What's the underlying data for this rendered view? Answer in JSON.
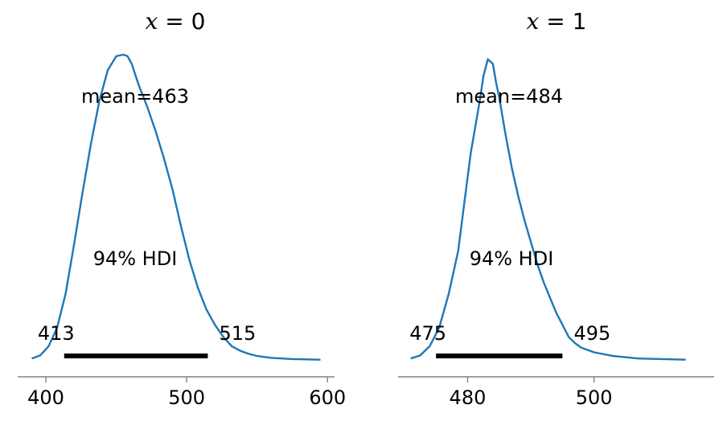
{
  "chart_data": [
    {
      "type": "line",
      "title": "x = 0",
      "title_math": {
        "var": "x",
        "value": "0"
      },
      "xlim": [
        380,
        605
      ],
      "xticks": [
        400,
        500,
        600
      ],
      "tick_labels": [
        "400",
        "500",
        "600"
      ],
      "ylim": [
        0,
        1
      ],
      "density": {
        "x": [
          390,
          396,
          402,
          408,
          414,
          420,
          426,
          432,
          438,
          444,
          450,
          455,
          458,
          461,
          466,
          472,
          478,
          484,
          490,
          496,
          502,
          508,
          514,
          520,
          526,
          532,
          538,
          544,
          550,
          560,
          575,
          595
        ],
        "y": [
          0.01,
          0.02,
          0.05,
          0.11,
          0.22,
          0.38,
          0.55,
          0.71,
          0.85,
          0.95,
          0.995,
          1.0,
          0.995,
          0.97,
          0.9,
          0.83,
          0.75,
          0.66,
          0.56,
          0.44,
          0.33,
          0.24,
          0.17,
          0.12,
          0.08,
          0.05,
          0.035,
          0.025,
          0.018,
          0.012,
          0.008,
          0.006
        ]
      },
      "mean_label": "mean=463",
      "hdi_label": "94% HDI",
      "hdi_lower": 413,
      "hdi_upper": 515,
      "hdi_lower_label": "413",
      "hdi_upper_label": "515",
      "color": "#1f77b4"
    },
    {
      "type": "line",
      "title": "x = 1",
      "title_math": {
        "var": "x",
        "value": "1"
      },
      "xlim": [
        469,
        519
      ],
      "xticks": [
        480,
        500
      ],
      "tick_labels": [
        "480",
        "500"
      ],
      "ylim": [
        0,
        1
      ],
      "density": {
        "x": [
          471,
          472.5,
          474,
          475.5,
          477,
          478.5,
          479.5,
          480.5,
          481.5,
          482,
          482.5,
          483.2,
          484,
          484.5,
          485,
          486,
          487,
          488,
          489,
          490,
          491,
          492,
          493,
          494,
          495,
          496,
          497,
          498,
          500,
          503,
          507,
          514.5
        ],
        "y": [
          0.01,
          0.02,
          0.05,
          0.11,
          0.22,
          0.36,
          0.52,
          0.68,
          0.8,
          0.86,
          0.93,
          0.985,
          0.97,
          0.91,
          0.86,
          0.74,
          0.63,
          0.54,
          0.46,
          0.39,
          0.32,
          0.26,
          0.21,
          0.16,
          0.12,
          0.08,
          0.06,
          0.045,
          0.03,
          0.018,
          0.01,
          0.006
        ]
      },
      "mean_label": "mean=484",
      "hdi_label": "94% HDI",
      "hdi_lower": 475,
      "hdi_upper": 495,
      "hdi_lower_label": "475",
      "hdi_upper_label": "495",
      "color": "#1f77b4"
    }
  ],
  "colors": {
    "curve": "#1f77b4",
    "hdi_bar": "#000000",
    "axis": "#808080",
    "text": "#000000"
  }
}
